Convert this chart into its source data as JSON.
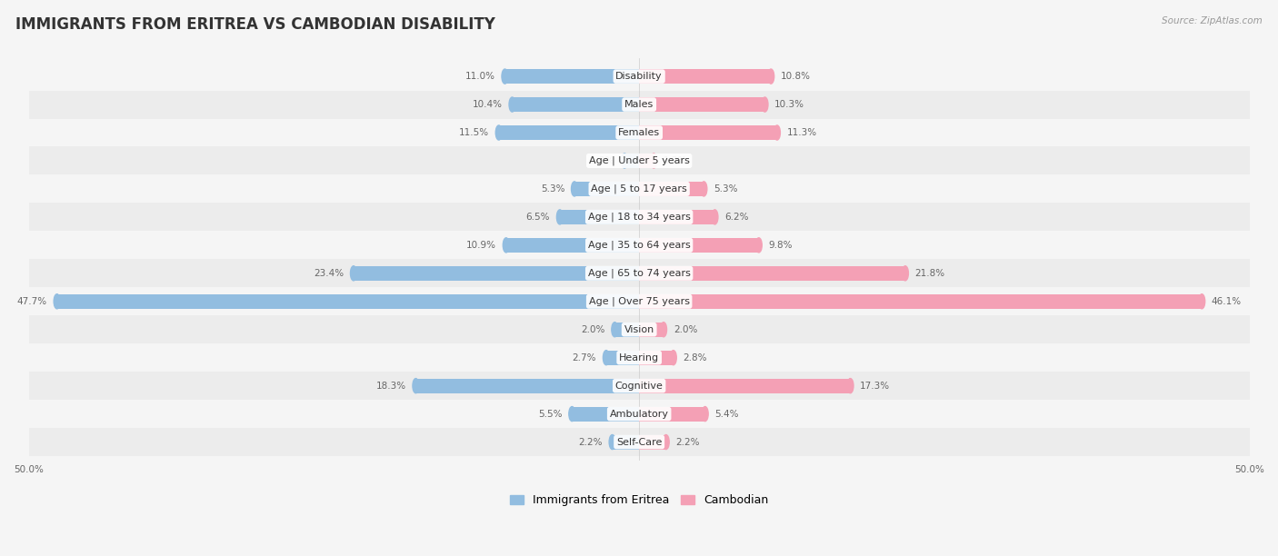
{
  "title": "IMMIGRANTS FROM ERITREA VS CAMBODIAN DISABILITY",
  "source": "Source: ZipAtlas.com",
  "categories": [
    "Disability",
    "Males",
    "Females",
    "Age | Under 5 years",
    "Age | 5 to 17 years",
    "Age | 18 to 34 years",
    "Age | 35 to 64 years",
    "Age | 65 to 74 years",
    "Age | Over 75 years",
    "Vision",
    "Hearing",
    "Cognitive",
    "Ambulatory",
    "Self-Care"
  ],
  "eritrea_values": [
    11.0,
    10.4,
    11.5,
    1.2,
    5.3,
    6.5,
    10.9,
    23.4,
    47.7,
    2.0,
    2.7,
    18.3,
    5.5,
    2.2
  ],
  "cambodian_values": [
    10.8,
    10.3,
    11.3,
    1.2,
    5.3,
    6.2,
    9.8,
    21.8,
    46.1,
    2.0,
    2.8,
    17.3,
    5.4,
    2.2
  ],
  "eritrea_color": "#92bde0",
  "cambodian_color": "#f4a0b5",
  "eritrea_label": "Immigrants from Eritrea",
  "cambodian_label": "Cambodian",
  "axis_limit": 50.0,
  "axis_label": "50.0%",
  "bg_colors": [
    "#f5f5f5",
    "#ececec"
  ],
  "bar_height": 0.52,
  "title_fontsize": 12,
  "label_fontsize": 8.0,
  "value_fontsize": 7.5,
  "legend_fontsize": 9,
  "title_color": "#333333",
  "value_color": "#666666",
  "label_color": "#333333"
}
